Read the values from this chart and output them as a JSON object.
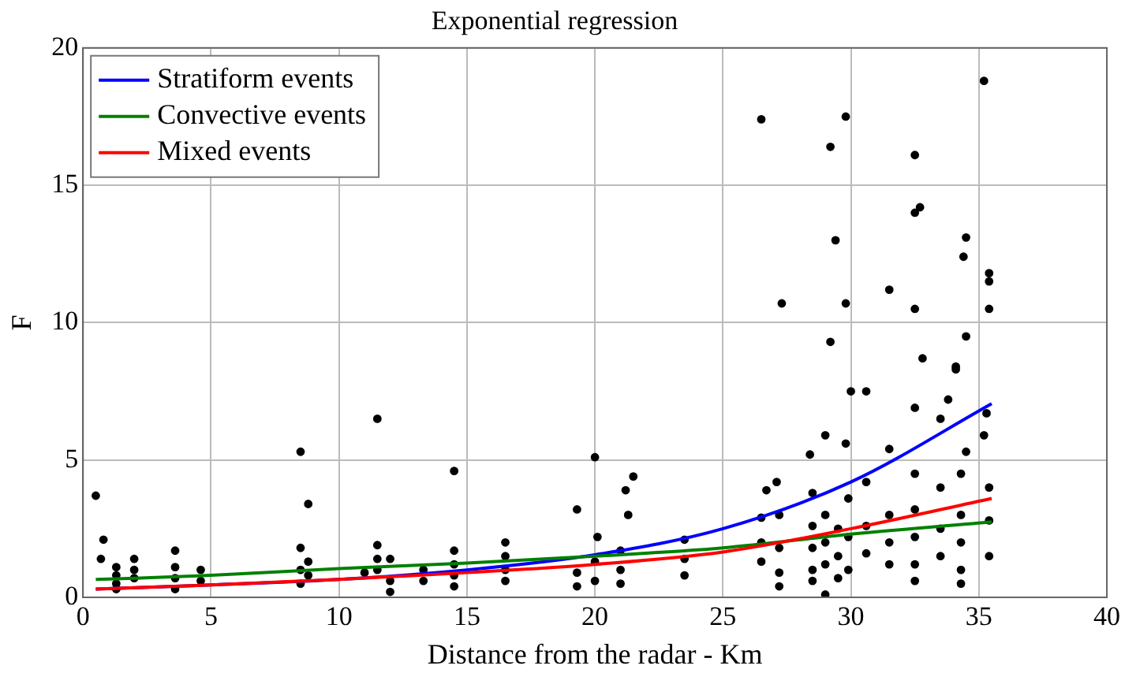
{
  "chart_data": {
    "type": "scatter",
    "title": "Exponential regression",
    "xlabel": "Distance from the radar - Km",
    "ylabel": "F",
    "xlim": [
      0,
      40
    ],
    "xticks": [
      0,
      5,
      10,
      15,
      20,
      25,
      30,
      35,
      40
    ],
    "ylim": [
      0,
      20
    ],
    "yticks": [
      0,
      5,
      10,
      15,
      20
    ],
    "grid": true,
    "legend": "top left",
    "series": [
      {
        "color": "#000000",
        "marker": "circle",
        "x": [
          0.5,
          0.8,
          0.7,
          1.3,
          1.3,
          1.3,
          1.3,
          2,
          2,
          2,
          3.6,
          3.6,
          3.6,
          3.6,
          4.6,
          4.6,
          8.5,
          8.5,
          8.5,
          8.5,
          8.8,
          8.8,
          8.8,
          11,
          11.5,
          11.5,
          11.5,
          11.5,
          12,
          12,
          12,
          13.3,
          13.3,
          14.5,
          14.5,
          14.5,
          14.5,
          14.5,
          16.5,
          16.5,
          16.5,
          16.5,
          19.3,
          19.3,
          19.3,
          20,
          20.1,
          20,
          20,
          21,
          21,
          21,
          21.2,
          21.5,
          21.3,
          23.5,
          23.5,
          23.5,
          26.5,
          26.7,
          26.5,
          26.5,
          26.5,
          27.1,
          27.3,
          27.2,
          27.2,
          27.2,
          27.2,
          28.4,
          28.5,
          28.5,
          28.5,
          28.5,
          28.5,
          29,
          29.2,
          29.2,
          29,
          29,
          29,
          29,
          29.4,
          29.5,
          29.5,
          29.5,
          29.8,
          29.8,
          29.8,
          29.9,
          29.9,
          29.9,
          30,
          30.6,
          30.6,
          30.6,
          30.6,
          31.5,
          31.5,
          31.5,
          31.5,
          31.5,
          32.5,
          32.5,
          32.7,
          32.5,
          32.5,
          32.5,
          32.5,
          32.5,
          32.5,
          32.5,
          32.8,
          33.5,
          33.5,
          33.5,
          33.5,
          33.8,
          34.1,
          34.1,
          34.3,
          34.3,
          34.3,
          34.3,
          34.3,
          34.4,
          34.5,
          34.5,
          34.5,
          35.2,
          35.4,
          35.4,
          35.4,
          35.3,
          35.2,
          35.4,
          35.4,
          35.4
        ],
        "values": [
          3.7,
          2.1,
          1.4,
          1.1,
          0.8,
          0.5,
          0.3,
          1.4,
          1,
          0.7,
          1.7,
          1.1,
          0.7,
          0.3,
          1,
          0.6,
          5.3,
          1.8,
          1,
          0.5,
          3.4,
          1.3,
          0.8,
          0.9,
          6.5,
          1.9,
          1.4,
          1,
          1.4,
          0.6,
          0.2,
          1,
          0.6,
          4.6,
          1.7,
          1.2,
          0.8,
          0.4,
          2,
          1.5,
          1,
          0.6,
          3.2,
          0.9,
          0.4,
          5.1,
          2.2,
          1.3,
          0.6,
          1.7,
          1,
          0.5,
          3.9,
          4.4,
          3,
          2.1,
          1.4,
          0.8,
          17.4,
          3.9,
          2.9,
          2,
          1.3,
          4.2,
          10.7,
          3,
          1.8,
          0.9,
          0.4,
          5.2,
          3.8,
          2.6,
          1.8,
          1,
          0.6,
          5.9,
          16.4,
          9.3,
          3,
          2,
          1.2,
          0.1,
          13,
          2.5,
          1.5,
          0.7,
          17.5,
          10.7,
          5.6,
          3.6,
          2.2,
          1,
          7.5,
          7.5,
          4.2,
          2.6,
          1.6,
          11.2,
          5.4,
          3,
          2,
          1.2,
          16.1,
          14,
          14.2,
          10.5,
          6.9,
          4.5,
          3.2,
          2.2,
          1.2,
          0.6,
          8.7,
          6.5,
          4,
          2.5,
          1.5,
          7.2,
          8.4,
          8.3,
          4.5,
          3,
          2,
          1,
          0.5,
          12.4,
          13.1,
          9.5,
          5.3,
          18.8,
          11.8,
          11.5,
          10.5,
          6.7,
          5.9,
          4,
          2.8,
          1.5
        ]
      },
      {
        "type": "line",
        "name": "Stratiform events",
        "color": "#0000ff",
        "marker": "none",
        "x": [
          0.5,
          5,
          10,
          15,
          20,
          25,
          30,
          35.5
        ],
        "values": [
          0.3,
          0.45,
          0.65,
          1,
          1.55,
          2.5,
          4.2,
          7.05
        ]
      },
      {
        "type": "line",
        "name": "Convective events",
        "color": "#008000",
        "marker": "none",
        "x": [
          0.5,
          5,
          10,
          15,
          20,
          25,
          30,
          35.5
        ],
        "values": [
          0.65,
          0.8,
          1.05,
          1.25,
          1.5,
          1.8,
          2.3,
          2.75
        ]
      },
      {
        "type": "line",
        "name": "Mixed events",
        "color": "#ff0000",
        "marker": "none",
        "x": [
          0.5,
          5,
          10,
          15,
          20,
          25,
          30,
          35.5
        ],
        "values": [
          0.3,
          0.45,
          0.65,
          0.9,
          1.2,
          1.65,
          2.5,
          3.6
        ]
      }
    ]
  }
}
